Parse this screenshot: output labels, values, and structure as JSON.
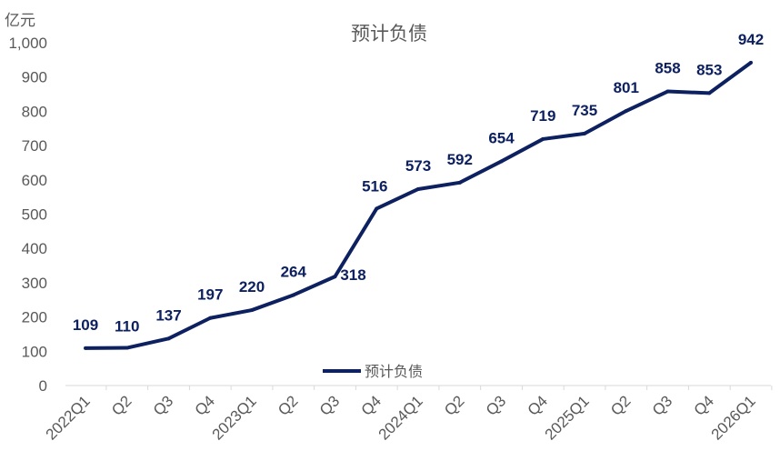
{
  "chart_data": {
    "type": "line",
    "title": "预计负债",
    "ylabel": "亿元",
    "xlabel": "",
    "categories": [
      "2022Q1",
      "Q2",
      "Q3",
      "Q4",
      "2023Q1",
      "Q2",
      "Q3",
      "Q4",
      "2024Q1",
      "Q2",
      "Q3",
      "Q4",
      "2025Q1",
      "Q2",
      "Q3",
      "Q4",
      "2026Q1"
    ],
    "series": [
      {
        "name": "预计负债",
        "values": [
          109,
          110,
          137,
          197,
          220,
          264,
          318,
          516,
          573,
          592,
          654,
          719,
          735,
          801,
          858,
          853,
          942
        ],
        "color": "#0d2060"
      }
    ],
    "ylim": [
      0,
      1000
    ],
    "yticks": [
      "0",
      "100",
      "200",
      "300",
      "400",
      "500",
      "600",
      "700",
      "800",
      "900",
      "1,000"
    ],
    "grid": false,
    "legend": "bottom-center",
    "data_labels": true
  }
}
